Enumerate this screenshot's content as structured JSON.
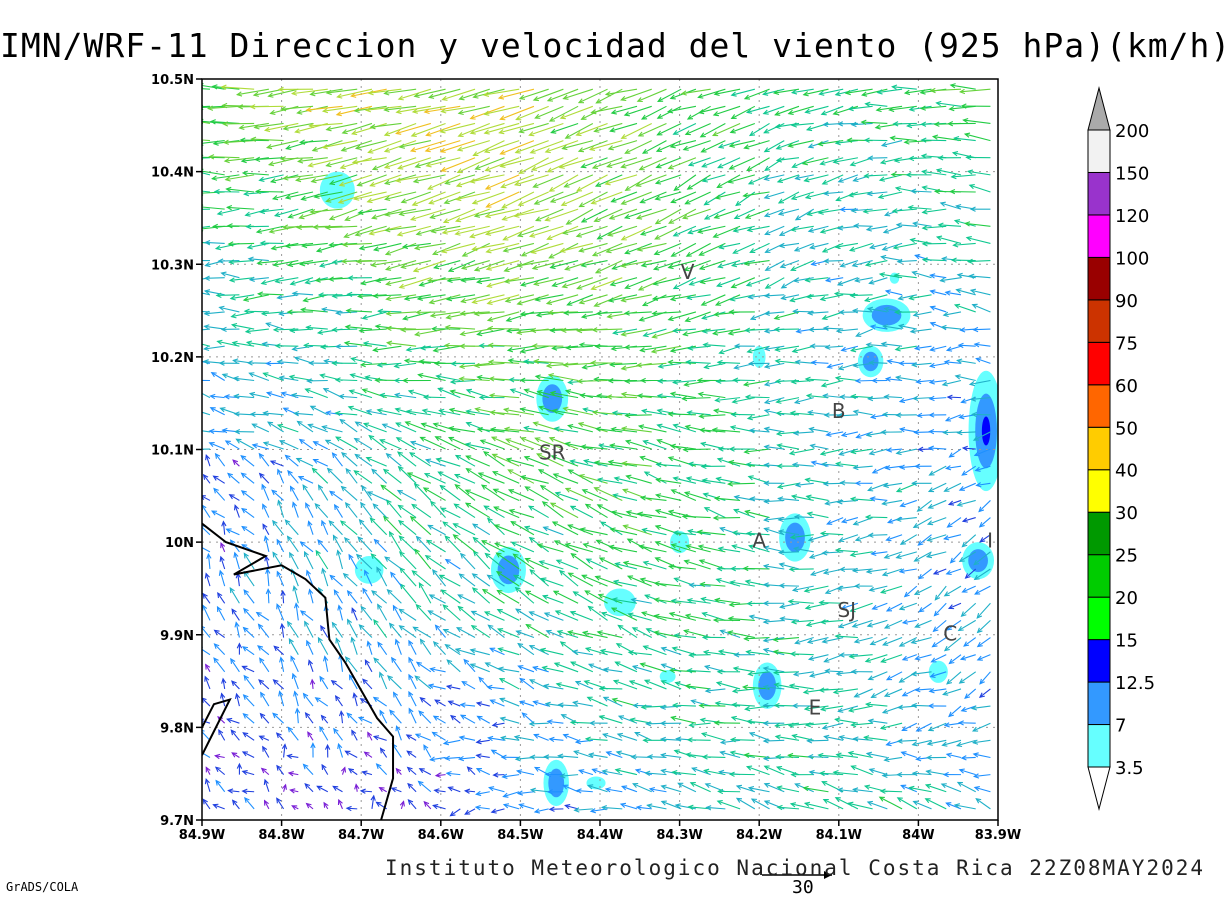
{
  "title": "IMN/WRF-11 Direccion y velocidad del viento (925 hPa)(km/h)",
  "footer": {
    "credit": "Instituto Meteorologico Nacional Costa Rica 22Z08MAY2024",
    "software": "GrADS/COLA",
    "reference_vector_label": "30"
  },
  "map": {
    "lon_range": [
      -84.9,
      -83.9
    ],
    "lat_range": [
      9.7,
      10.5
    ],
    "x_ticks": [
      {
        "value": -84.9,
        "label": "84.9W"
      },
      {
        "value": -84.8,
        "label": "84.8W"
      },
      {
        "value": -84.7,
        "label": "84.7W"
      },
      {
        "value": -84.6,
        "label": "84.6W"
      },
      {
        "value": -84.5,
        "label": "84.5W"
      },
      {
        "value": -84.4,
        "label": "84.4W"
      },
      {
        "value": -84.3,
        "label": "84.3W"
      },
      {
        "value": -84.2,
        "label": "84.2W"
      },
      {
        "value": -84.1,
        "label": "84.1W"
      },
      {
        "value": -84.0,
        "label": "84W"
      },
      {
        "value": -83.9,
        "label": "83.9W"
      }
    ],
    "y_ticks": [
      {
        "value": 9.7,
        "label": "9.7N"
      },
      {
        "value": 9.8,
        "label": "9.8N"
      },
      {
        "value": 9.9,
        "label": "9.9N"
      },
      {
        "value": 10.0,
        "label": "10N"
      },
      {
        "value": 10.1,
        "label": "10.1N"
      },
      {
        "value": 10.2,
        "label": "10.2N"
      },
      {
        "value": 10.3,
        "label": "10.3N"
      },
      {
        "value": 10.4,
        "label": "10.4N"
      },
      {
        "value": 10.5,
        "label": "10.5N"
      }
    ],
    "places": [
      {
        "label": "V",
        "lon": -84.29,
        "lat": 10.29
      },
      {
        "label": "SR",
        "lon": -84.46,
        "lat": 10.095
      },
      {
        "label": "B",
        "lon": -84.1,
        "lat": 10.14
      },
      {
        "label": "A",
        "lon": -84.2,
        "lat": 10.0
      },
      {
        "label": "SJ",
        "lon": -84.09,
        "lat": 9.925
      },
      {
        "label": "C",
        "lon": -83.96,
        "lat": 9.9
      },
      {
        "label": "E",
        "lon": -84.13,
        "lat": 9.82
      },
      {
        "label": "I",
        "lon": -83.91,
        "lat": 10.0
      }
    ],
    "coastline": [
      [
        -84.9,
        10.02
      ],
      [
        -84.87,
        10.0
      ],
      [
        -84.82,
        9.985
      ],
      [
        -84.86,
        9.965
      ],
      [
        -84.8,
        9.975
      ],
      [
        -84.77,
        9.96
      ],
      [
        -84.745,
        9.94
      ],
      [
        -84.74,
        9.895
      ],
      [
        -84.72,
        9.87
      ],
      [
        -84.7,
        9.84
      ],
      [
        -84.68,
        9.81
      ],
      [
        -84.66,
        9.79
      ],
      [
        -84.66,
        9.745
      ],
      [
        -84.675,
        9.7
      ]
    ],
    "peninsula": [
      [
        -84.9,
        9.8
      ],
      [
        -84.885,
        9.825
      ],
      [
        -84.865,
        9.83
      ],
      [
        -84.9,
        9.77
      ]
    ],
    "speed_patches": [
      {
        "lon": -84.73,
        "lat": 10.38,
        "rx": 0.022,
        "ry": 0.02,
        "level": 1
      },
      {
        "lon": -84.46,
        "lat": 10.155,
        "rx": 0.02,
        "ry": 0.025,
        "level": 2
      },
      {
        "lon": -84.515,
        "lat": 9.97,
        "rx": 0.022,
        "ry": 0.025,
        "level": 2
      },
      {
        "lon": -84.69,
        "lat": 9.97,
        "rx": 0.018,
        "ry": 0.015,
        "level": 1
      },
      {
        "lon": -84.375,
        "lat": 9.935,
        "rx": 0.02,
        "ry": 0.015,
        "level": 1
      },
      {
        "lon": -84.3,
        "lat": 10.0,
        "rx": 0.012,
        "ry": 0.012,
        "level": 1
      },
      {
        "lon": -84.155,
        "lat": 10.005,
        "rx": 0.02,
        "ry": 0.026,
        "level": 2
      },
      {
        "lon": -84.19,
        "lat": 9.845,
        "rx": 0.018,
        "ry": 0.025,
        "level": 2
      },
      {
        "lon": -84.2,
        "lat": 10.2,
        "rx": 0.008,
        "ry": 0.012,
        "level": 1
      },
      {
        "lon": -84.06,
        "lat": 10.195,
        "rx": 0.016,
        "ry": 0.017,
        "level": 2
      },
      {
        "lon": -84.04,
        "lat": 10.245,
        "rx": 0.03,
        "ry": 0.018,
        "level": 2
      },
      {
        "lon": -84.03,
        "lat": 10.285,
        "rx": 0.006,
        "ry": 0.006,
        "level": 1
      },
      {
        "lon": -83.915,
        "lat": 10.12,
        "rx": 0.022,
        "ry": 0.065,
        "level": 3
      },
      {
        "lon": -83.925,
        "lat": 9.98,
        "rx": 0.02,
        "ry": 0.02,
        "level": 2
      },
      {
        "lon": -83.975,
        "lat": 9.86,
        "rx": 0.012,
        "ry": 0.012,
        "level": 1
      },
      {
        "lon": -84.315,
        "lat": 9.855,
        "rx": 0.01,
        "ry": 0.007,
        "level": 1
      },
      {
        "lon": -84.455,
        "lat": 9.74,
        "rx": 0.016,
        "ry": 0.025,
        "level": 2
      },
      {
        "lon": -84.405,
        "lat": 9.74,
        "rx": 0.012,
        "ry": 0.007,
        "level": 1
      }
    ]
  },
  "colorbar": {
    "levels": [
      {
        "label": "3.5",
        "color": "#66ffff"
      },
      {
        "label": "7",
        "color": "#3399ff"
      },
      {
        "label": "12.5",
        "color": "#0000ff"
      },
      {
        "label": "15",
        "color": "#00ff00"
      },
      {
        "label": "20",
        "color": "#00cc00"
      },
      {
        "label": "25",
        "color": "#009900"
      },
      {
        "label": "30",
        "color": "#ffff00"
      },
      {
        "label": "40",
        "color": "#ffcc00"
      },
      {
        "label": "50",
        "color": "#ff6600"
      },
      {
        "label": "60",
        "color": "#ff0000"
      },
      {
        "label": "75",
        "color": "#cc3300"
      },
      {
        "label": "90",
        "color": "#990000"
      },
      {
        "label": "100",
        "color": "#ff00ff"
      },
      {
        "label": "120",
        "color": "#9933cc"
      },
      {
        "label": "150",
        "color": "#f2f2f2"
      },
      {
        "label": "200",
        "color": "#aaaaaa"
      }
    ],
    "segment_colors": [
      "#66ffff",
      "#3399ff",
      "#0000ff",
      "#00ff00",
      "#00cc00",
      "#009900",
      "#ffff00",
      "#ffcc00",
      "#ff6600",
      "#ff0000",
      "#cc3300",
      "#990000",
      "#ff00ff",
      "#9933cc",
      "#f2f2f2"
    ],
    "under_color": "#ffffff",
    "over_color": "#aaaaaa"
  },
  "arrow_palette": [
    "#7a1fd6",
    "#2040e0",
    "#1e90ff",
    "#20b0c8",
    "#10c890",
    "#22cc44",
    "#66d23a",
    "#b0dc3a",
    "#f0c020",
    "#f08a20",
    "#e84a20"
  ]
}
